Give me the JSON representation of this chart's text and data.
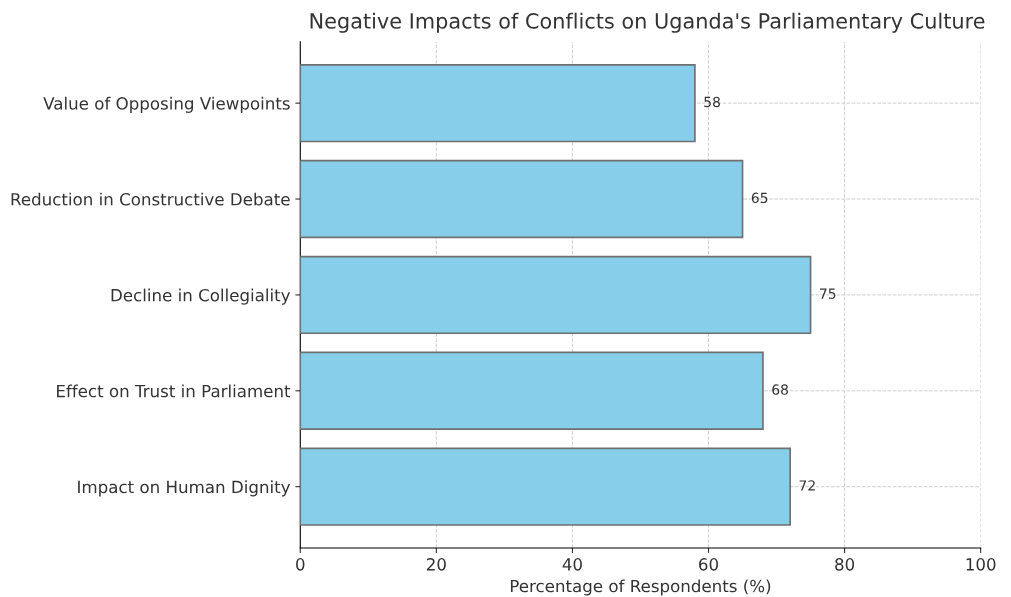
{
  "chart_data": {
    "type": "bar",
    "orientation": "horizontal",
    "title": "Negative Impacts of Conflicts on Uganda's Parliamentary Culture",
    "xlabel": "Percentage of Respondents (%)",
    "categories": [
      "Value of Opposing Viewpoints",
      "Reduction in Constructive Debate",
      "Decline in Collegiality",
      "Effect on Trust in Parliament",
      "Impact on Human Dignity"
    ],
    "values": [
      58,
      65,
      75,
      68,
      72
    ],
    "color": "#87ceeb",
    "xlim": [
      0,
      100
    ],
    "xticks": [
      0,
      20,
      40,
      60,
      80,
      100
    ],
    "grid": true,
    "data_labels": true
  }
}
